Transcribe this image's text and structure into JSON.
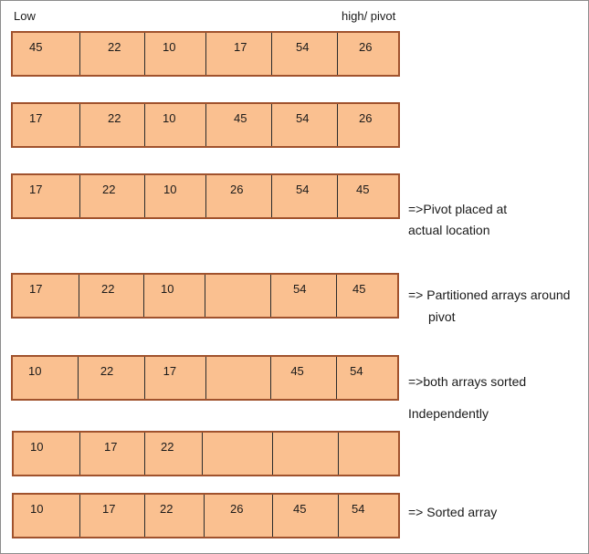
{
  "header": {
    "low_label": "Low",
    "high_label": "high/ pivot"
  },
  "rows": [
    {
      "cells": [
        "45",
        "22",
        "10",
        "17",
        "54",
        "26"
      ]
    },
    {
      "cells": [
        "17",
        "22",
        "10",
        "45",
        "54",
        "26"
      ]
    },
    {
      "cells": [
        "17",
        "22",
        "10",
        "26",
        "54",
        "45"
      ]
    },
    {
      "cells": [
        "17",
        "22",
        "10",
        "",
        "54",
        "45"
      ]
    },
    {
      "cells": [
        "10",
        "22",
        "17",
        "",
        "45",
        "54"
      ]
    },
    {
      "cells": [
        "10",
        "17",
        "22",
        "",
        "",
        ""
      ]
    },
    {
      "cells": [
        "10",
        "17",
        "22",
        "26",
        "45",
        "54"
      ]
    }
  ],
  "notes": {
    "pivot_placed_line1": "=>Pivot  placed at",
    "pivot_placed_line2": "actual location",
    "partitioned_line1": "=> Partitioned arrays around",
    "partitioned_line2": "pivot",
    "sorted_independently_line1": "=>both arrays sorted",
    "sorted_independently_line2": "Independently",
    "sorted_array": "=> Sorted array"
  },
  "colors": {
    "cell_fill": "#fac090",
    "outer_border": "#a0522d",
    "divider": "#2b2b2b"
  }
}
